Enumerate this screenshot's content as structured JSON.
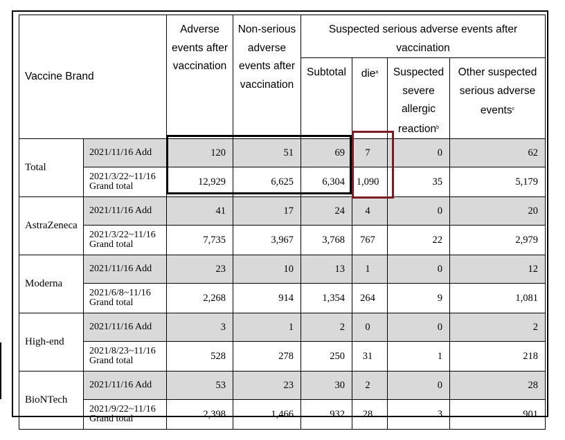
{
  "table": {
    "headers": {
      "brand": "Vaccine Brand",
      "adverse": "Adverse events after vaccination",
      "nonserious": "Non-serious adverse events after vaccination",
      "suspected": "Suspected serious adverse events after vaccination",
      "subtotal": "Subtotal",
      "die": "die",
      "die_note": "a",
      "allergic": "Suspected severe allergic reaction",
      "allergic_note": "b",
      "other": "Other suspected serious adverse events",
      "other_note": "c"
    },
    "groups": [
      {
        "name": "Total",
        "rows": [
          {
            "period": "2021/11/16 Add",
            "period2": "",
            "adverse": "120",
            "nonserious": "51",
            "subtotal": "69",
            "die": "7",
            "allergic": "0",
            "other": "62"
          },
          {
            "period": "2021/3/22~11/16",
            "period2": "Grand total",
            "adverse": "12,929",
            "nonserious": "6,625",
            "subtotal": "6,304",
            "die": "1,090",
            "allergic": "35",
            "other": "5,179"
          }
        ]
      },
      {
        "name": "AstraZeneca",
        "rows": [
          {
            "period": "2021/11/16 Add",
            "period2": "",
            "adverse": "41",
            "nonserious": "17",
            "subtotal": "24",
            "die": "4",
            "allergic": "0",
            "other": "20"
          },
          {
            "period": "2021/3/22~11/16",
            "period2": "Grand total",
            "adverse": "7,735",
            "nonserious": "3,967",
            "subtotal": "3,768",
            "die": "767",
            "allergic": "22",
            "other": "2,979"
          }
        ]
      },
      {
        "name": "Moderna",
        "rows": [
          {
            "period": "2021/11/16 Add",
            "period2": "",
            "adverse": "23",
            "nonserious": "10",
            "subtotal": "13",
            "die": "1",
            "allergic": "0",
            "other": "12"
          },
          {
            "period": "2021/6/8~11/16",
            "period2": "Grand total",
            "adverse": "2,268",
            "nonserious": "914",
            "subtotal": "1,354",
            "die": "264",
            "allergic": "9",
            "other": "1,081"
          }
        ]
      },
      {
        "name": "High-end",
        "rows": [
          {
            "period": "2021/11/16 Add",
            "period2": "",
            "adverse": "3",
            "nonserious": "1",
            "subtotal": "2",
            "die": "0",
            "allergic": "0",
            "other": "2"
          },
          {
            "period": "2021/8/23~11/16",
            "period2": "Grand total",
            "adverse": "528",
            "nonserious": "278",
            "subtotal": "250",
            "die": "31",
            "allergic": "1",
            "other": "218"
          }
        ]
      },
      {
        "name": "BioNTech",
        "rows": [
          {
            "period": "2021/11/16 Add",
            "period2": "",
            "adverse": "53",
            "nonserious": "23",
            "subtotal": "30",
            "die": "2",
            "allergic": "0",
            "other": "28"
          },
          {
            "period": "2021/9/22~11/16",
            "period2": "Grand total",
            "adverse": "2,398",
            "nonserious": "1,466",
            "subtotal": "932",
            "die": "28",
            "allergic": "3",
            "other": "901"
          }
        ]
      }
    ]
  },
  "colors": {
    "add_row_fill": "#d9d9d9",
    "highlight_black": "#000000",
    "highlight_red": "#7b1c24"
  }
}
